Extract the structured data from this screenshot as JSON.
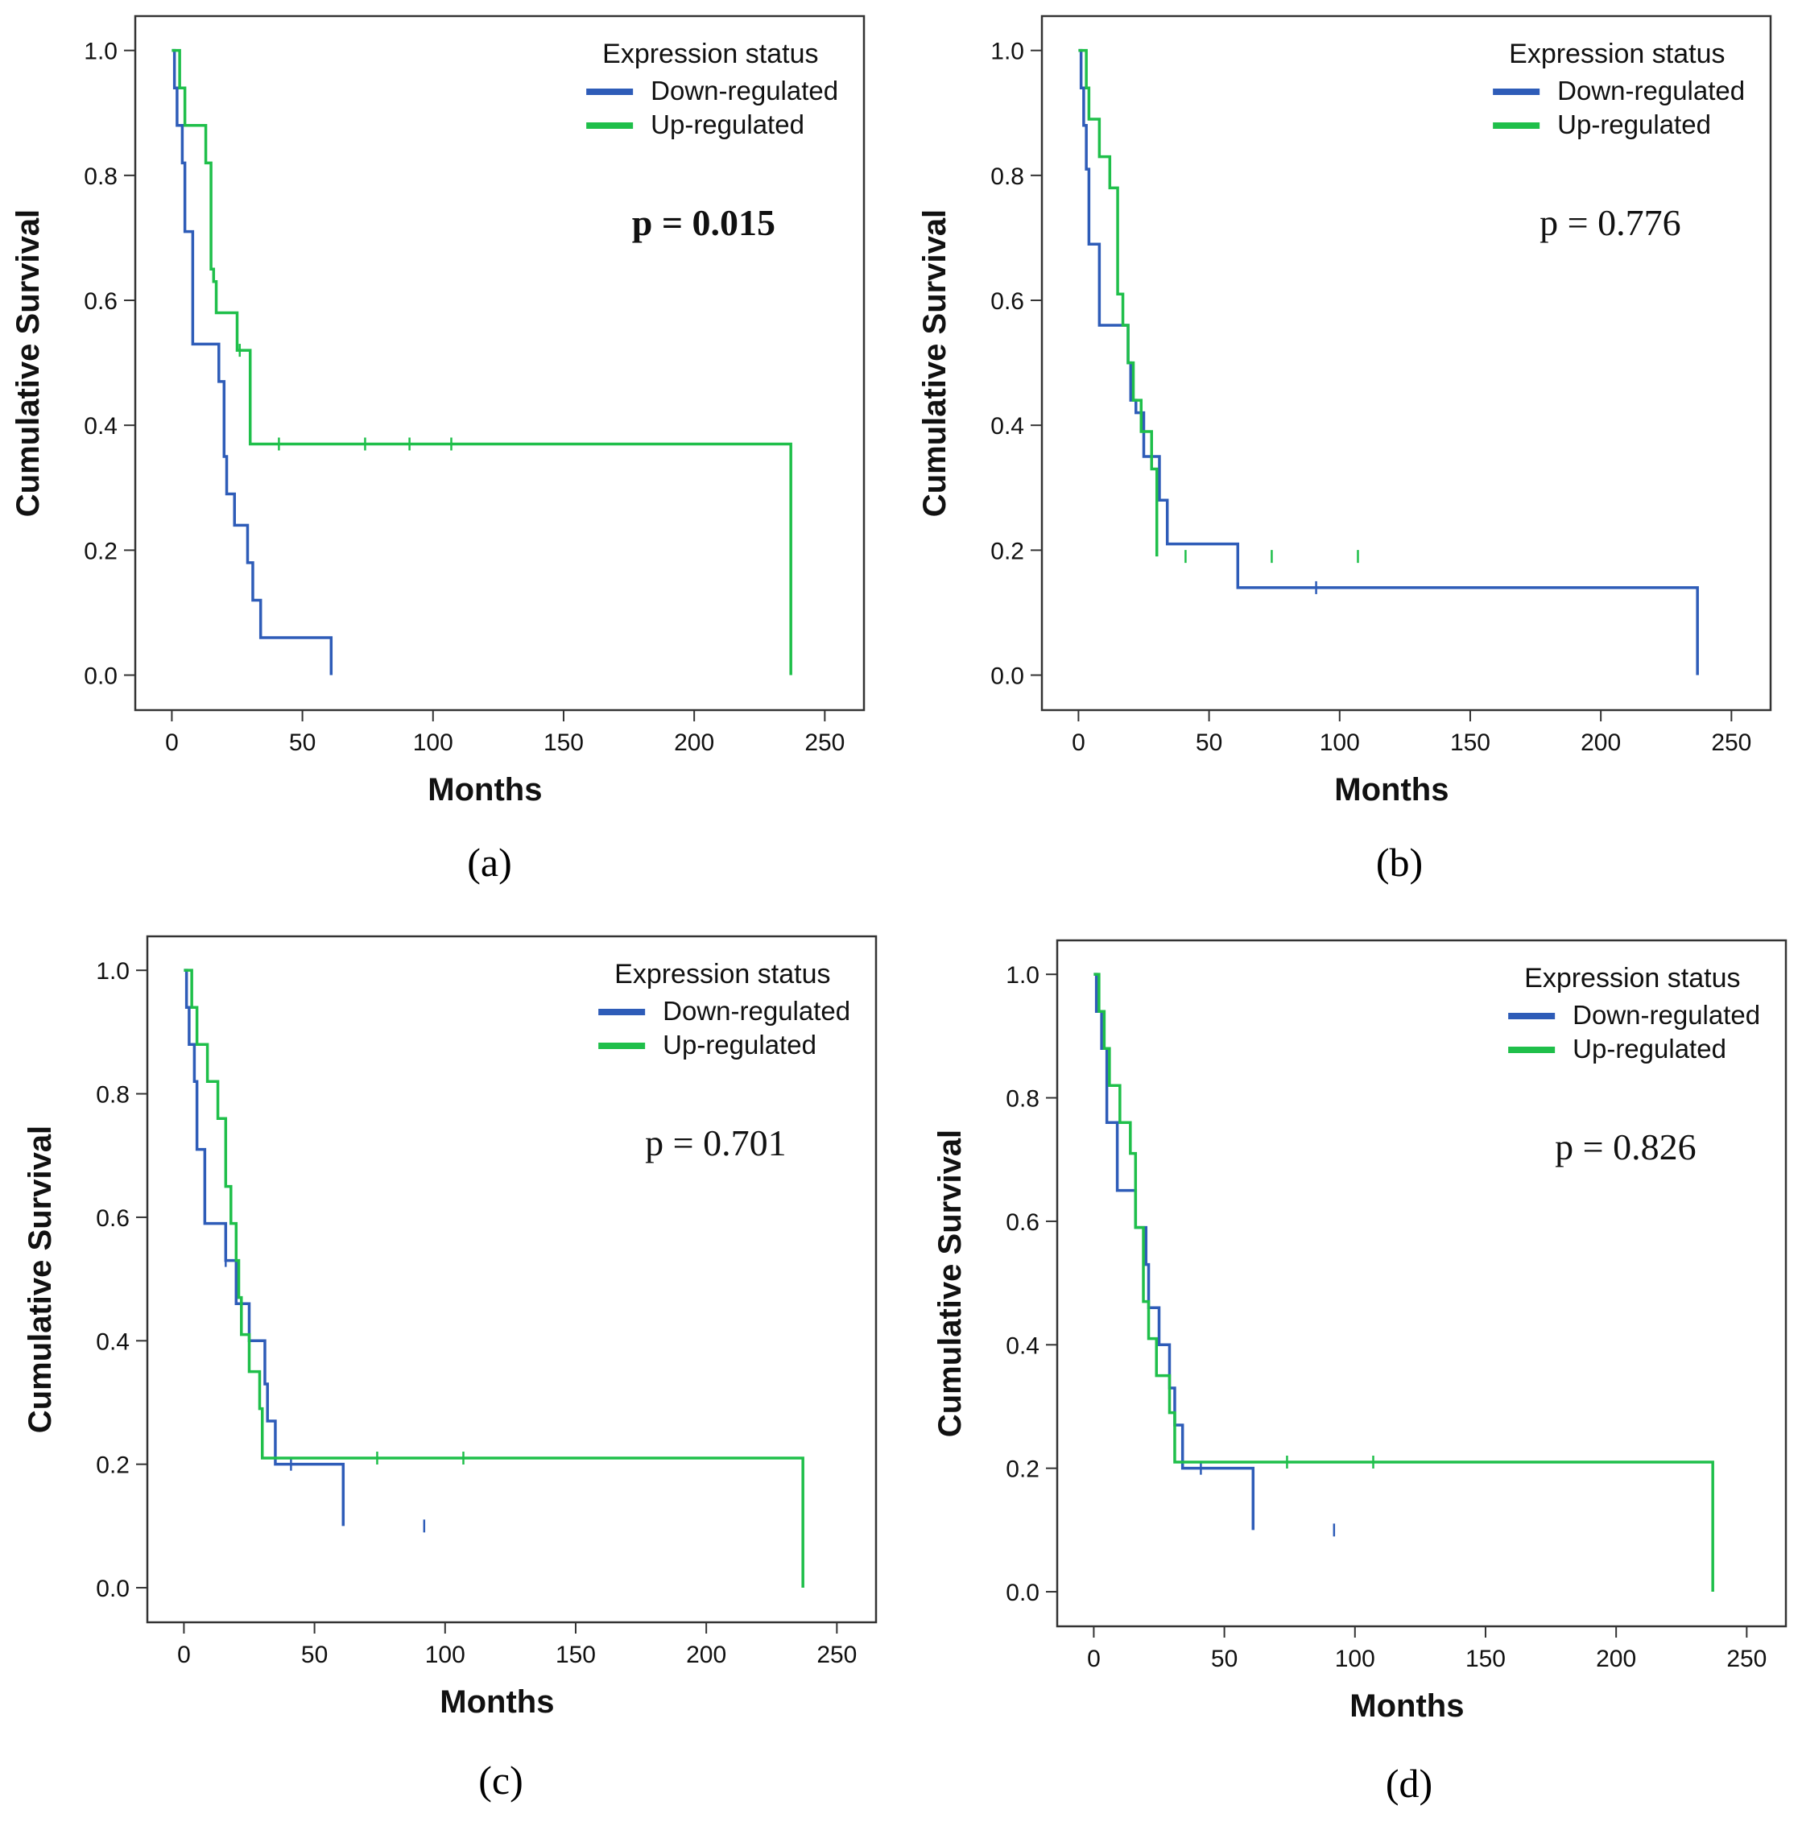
{
  "figure": {
    "captions": [
      "(a)",
      "(b)",
      "(c)",
      "(d)"
    ]
  },
  "colors": {
    "down": "#2e5cb8",
    "up": "#1fbf4a",
    "frame": "#333333",
    "text": "#111111"
  },
  "chart_data": [
    {
      "panel": "a",
      "type": "line",
      "subtype": "kaplan-meier",
      "xlabel": "Months",
      "ylabel": "Cumulative Survival",
      "xlim": [
        -14,
        265
      ],
      "ylim": [
        -0.056,
        1.055
      ],
      "xticks": [
        0,
        50,
        100,
        150,
        200,
        250
      ],
      "yticks": [
        0.0,
        0.2,
        0.4,
        0.6,
        0.8,
        1.0
      ],
      "xtick_labels": [
        "0",
        "50",
        "100",
        "150",
        "200",
        "250"
      ],
      "ytick_labels": [
        "0.0",
        "0.2",
        "0.4",
        "0.6",
        "0.8",
        "1.0"
      ],
      "legend_title": "Expression status",
      "legend_position": "top-right",
      "annotation": "p = 0.015",
      "annotation_bold": true,
      "series": [
        {
          "name": "Down-regulated",
          "color": "#2e5cb8",
          "steps": [
            [
              0,
              1.0
            ],
            [
              1,
              0.94
            ],
            [
              2,
              0.88
            ],
            [
              4,
              0.82
            ],
            [
              5,
              0.71
            ],
            [
              8,
              0.53
            ],
            [
              18,
              0.47
            ],
            [
              20,
              0.35
            ],
            [
              21,
              0.29
            ],
            [
              24,
              0.24
            ],
            [
              29,
              0.18
            ],
            [
              31,
              0.12
            ],
            [
              34,
              0.06
            ],
            [
              61,
              0.0
            ]
          ],
          "censored": []
        },
        {
          "name": "Up-regulated",
          "color": "#1fbf4a",
          "steps": [
            [
              0,
              1.0
            ],
            [
              3,
              0.94
            ],
            [
              5,
              0.88
            ],
            [
              13,
              0.82
            ],
            [
              15,
              0.65
            ],
            [
              16,
              0.63
            ],
            [
              17,
              0.58
            ],
            [
              25,
              0.52
            ],
            [
              30,
              0.37
            ],
            [
              237,
              0.0
            ]
          ],
          "censored": [
            [
              26,
              0.52
            ],
            [
              41,
              0.37
            ],
            [
              74,
              0.37
            ],
            [
              91,
              0.37
            ],
            [
              107,
              0.37
            ]
          ]
        }
      ]
    },
    {
      "panel": "b",
      "type": "line",
      "subtype": "kaplan-meier",
      "xlabel": "Months",
      "ylabel": "Cumulative Survival",
      "xlim": [
        -14,
        265
      ],
      "ylim": [
        -0.056,
        1.055
      ],
      "xticks": [
        0,
        50,
        100,
        150,
        200,
        250
      ],
      "yticks": [
        0.0,
        0.2,
        0.4,
        0.6,
        0.8,
        1.0
      ],
      "xtick_labels": [
        "0",
        "50",
        "100",
        "150",
        "200",
        "250"
      ],
      "ytick_labels": [
        "0.0",
        "0.2",
        "0.4",
        "0.6",
        "0.8",
        "1.0"
      ],
      "legend_title": "Expression status",
      "legend_position": "top-right",
      "annotation": "p = 0.776",
      "annotation_bold": false,
      "series": [
        {
          "name": "Down-regulated",
          "color": "#2e5cb8",
          "steps": [
            [
              0,
              1.0
            ],
            [
              1,
              0.94
            ],
            [
              2,
              0.88
            ],
            [
              3,
              0.81
            ],
            [
              4,
              0.69
            ],
            [
              8,
              0.56
            ],
            [
              19,
              0.5
            ],
            [
              20,
              0.44
            ],
            [
              22,
              0.42
            ],
            [
              25,
              0.35
            ],
            [
              30,
              0.35
            ],
            [
              31,
              0.28
            ],
            [
              34,
              0.21
            ],
            [
              61,
              0.14
            ],
            [
              237,
              0.0
            ]
          ],
          "censored": [
            [
              91,
              0.14
            ]
          ]
        },
        {
          "name": "Up-regulated",
          "color": "#1fbf4a",
          "steps": [
            [
              0,
              1.0
            ],
            [
              3,
              0.94
            ],
            [
              4,
              0.89
            ],
            [
              8,
              0.83
            ],
            [
              12,
              0.78
            ],
            [
              15,
              0.61
            ],
            [
              17,
              0.56
            ],
            [
              19,
              0.5
            ],
            [
              21,
              0.44
            ],
            [
              24,
              0.39
            ],
            [
              28,
              0.33
            ],
            [
              30,
              0.19
            ]
          ],
          "censored": [
            [
              41,
              0.19
            ],
            [
              74,
              0.19
            ],
            [
              107,
              0.19
            ]
          ]
        }
      ]
    },
    {
      "panel": "c",
      "type": "line",
      "subtype": "kaplan-meier",
      "xlabel": "Months",
      "ylabel": "Cumulative Survival",
      "xlim": [
        -14,
        265
      ],
      "ylim": [
        -0.056,
        1.055
      ],
      "xticks": [
        0,
        50,
        100,
        150,
        200,
        250
      ],
      "yticks": [
        0.0,
        0.2,
        0.4,
        0.6,
        0.8,
        1.0
      ],
      "xtick_labels": [
        "0",
        "50",
        "100",
        "150",
        "200",
        "250"
      ],
      "ytick_labels": [
        "0.0",
        "0.2",
        "0.4",
        "0.6",
        "0.8",
        "1.0"
      ],
      "legend_title": "Expression status",
      "legend_position": "top-right",
      "annotation": "p = 0.701",
      "annotation_bold": false,
      "series": [
        {
          "name": "Down-regulated",
          "color": "#2e5cb8",
          "steps": [
            [
              0,
              1.0
            ],
            [
              1,
              0.94
            ],
            [
              2,
              0.88
            ],
            [
              4,
              0.82
            ],
            [
              5,
              0.71
            ],
            [
              8,
              0.59
            ],
            [
              16,
              0.53
            ],
            [
              20,
              0.46
            ],
            [
              25,
              0.4
            ],
            [
              31,
              0.33
            ],
            [
              32,
              0.27
            ],
            [
              35,
              0.2
            ],
            [
              61,
              0.1
            ]
          ],
          "censored": [
            [
              16,
              0.53
            ],
            [
              41,
              0.2
            ],
            [
              92,
              0.1
            ]
          ]
        },
        {
          "name": "Up-regulated",
          "color": "#1fbf4a",
          "steps": [
            [
              0,
              1.0
            ],
            [
              3,
              0.94
            ],
            [
              5,
              0.88
            ],
            [
              9,
              0.82
            ],
            [
              13,
              0.76
            ],
            [
              16,
              0.65
            ],
            [
              18,
              0.59
            ],
            [
              20,
              0.53
            ],
            [
              21,
              0.47
            ],
            [
              22,
              0.41
            ],
            [
              25,
              0.35
            ],
            [
              29,
              0.29
            ],
            [
              30,
              0.21
            ],
            [
              237,
              0.0
            ]
          ],
          "censored": [
            [
              74,
              0.21
            ],
            [
              107,
              0.21
            ]
          ]
        }
      ]
    },
    {
      "panel": "d",
      "type": "line",
      "subtype": "kaplan-meier",
      "xlabel": "Months",
      "ylabel": "Cumulative Survival",
      "xlim": [
        -14,
        265
      ],
      "ylim": [
        -0.056,
        1.055
      ],
      "xticks": [
        0,
        50,
        100,
        150,
        200,
        250
      ],
      "yticks": [
        0.0,
        0.2,
        0.4,
        0.6,
        0.8,
        1.0
      ],
      "xtick_labels": [
        "0",
        "50",
        "100",
        "150",
        "200",
        "250"
      ],
      "ytick_labels": [
        "0.0",
        "0.2",
        "0.4",
        "0.6",
        "0.8",
        "1.0"
      ],
      "legend_title": "Expression status",
      "legend_position": "top-right",
      "annotation": "p = 0.826",
      "annotation_bold": false,
      "series": [
        {
          "name": "Down-regulated",
          "color": "#2e5cb8",
          "steps": [
            [
              0,
              1.0
            ],
            [
              1,
              0.94
            ],
            [
              3,
              0.88
            ],
            [
              5,
              0.76
            ],
            [
              9,
              0.65
            ],
            [
              16,
              0.59
            ],
            [
              20,
              0.53
            ],
            [
              21,
              0.46
            ],
            [
              25,
              0.4
            ],
            [
              29,
              0.33
            ],
            [
              31,
              0.27
            ],
            [
              34,
              0.2
            ],
            [
              61,
              0.1
            ]
          ],
          "censored": [
            [
              41,
              0.2
            ],
            [
              92,
              0.1
            ]
          ]
        },
        {
          "name": "Up-regulated",
          "color": "#1fbf4a",
          "steps": [
            [
              0,
              1.0
            ],
            [
              2,
              0.94
            ],
            [
              4,
              0.88
            ],
            [
              6,
              0.82
            ],
            [
              10,
              0.76
            ],
            [
              14,
              0.71
            ],
            [
              16,
              0.59
            ],
            [
              19,
              0.47
            ],
            [
              21,
              0.41
            ],
            [
              24,
              0.35
            ],
            [
              29,
              0.29
            ],
            [
              31,
              0.21
            ],
            [
              237,
              0.0
            ]
          ],
          "censored": [
            [
              74,
              0.21
            ],
            [
              107,
              0.21
            ]
          ]
        }
      ]
    }
  ]
}
